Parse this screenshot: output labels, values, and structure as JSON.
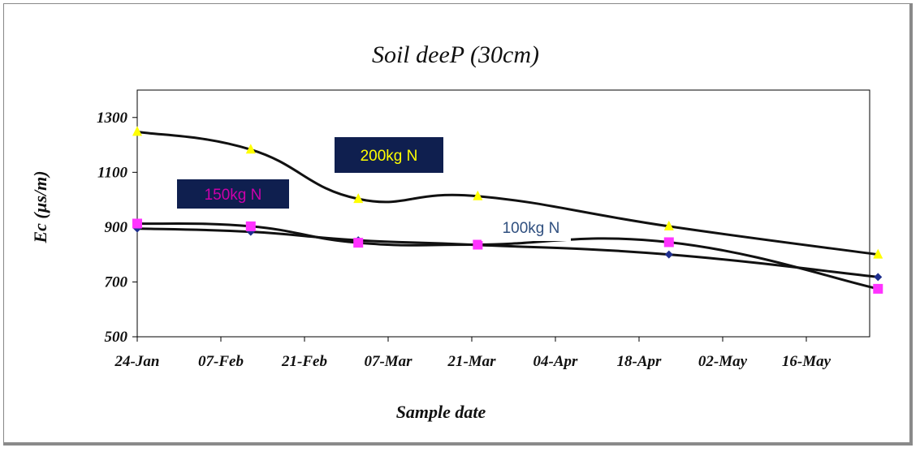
{
  "chart_data": {
    "type": "line",
    "title": "Soil deeP (30cm)",
    "xlabel": "Sample date",
    "ylabel": "Ec (µs/m)",
    "x_tick_labels": [
      "24-Jan",
      "07-Feb",
      "21-Feb",
      "07-Mar",
      "21-Mar",
      "04-Apr",
      "18-Apr",
      "02-May",
      "16-May"
    ],
    "y_ticks": [
      500,
      700,
      900,
      1100,
      1300
    ],
    "ylim": [
      500,
      1400
    ],
    "grid": false,
    "series": [
      {
        "name": "100kg N",
        "label_color": "#2f4f7f",
        "marker": "diamond",
        "marker_color": "#1f2f8f",
        "x": [
          "24-Jan",
          "12-Feb",
          "02-Mar",
          "22-Mar",
          "23-Apr",
          "28-May"
        ],
        "values": [
          895,
          883,
          852,
          835,
          800,
          718
        ]
      },
      {
        "name": "150kg N",
        "label_color": "#cc00aa",
        "marker": "square",
        "marker_color": "#ff33ff",
        "x": [
          "24-Jan",
          "12-Feb",
          "02-Mar",
          "22-Mar",
          "23-Apr",
          "28-May"
        ],
        "values": [
          913,
          903,
          843,
          836,
          845,
          675
        ]
      },
      {
        "name": "200kg N",
        "label_color": "#ffff00",
        "marker": "triangle",
        "marker_color": "#ffff00",
        "x": [
          "24-Jan",
          "12-Feb",
          "02-Mar",
          "22-Mar",
          "23-Apr",
          "28-May"
        ],
        "values": [
          1248,
          1183,
          1003,
          1013,
          903,
          800
        ]
      }
    ]
  }
}
